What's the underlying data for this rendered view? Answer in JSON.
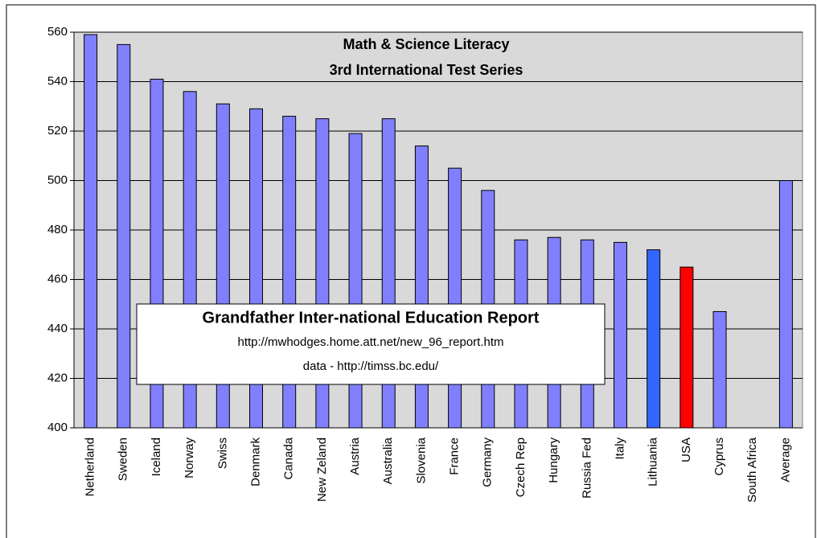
{
  "chart_data": {
    "type": "bar",
    "title": "Math & Science Literacy",
    "subtitle": "3rd International Test Series",
    "categories": [
      "Netherland",
      "Sweden",
      "Iceland",
      "Norway",
      "Swiss",
      "Denmark",
      "Canada",
      "New Zeland",
      "Austria",
      "Australia",
      "Slovenia",
      "France",
      "Germany",
      "Czech Rep",
      "Hungary",
      "Russia Fed",
      "Italy",
      "Lithuania",
      "USA",
      "Cyprus",
      "South Africa",
      "Average"
    ],
    "values": [
      559,
      555,
      541,
      536,
      531,
      529,
      526,
      525,
      519,
      525,
      514,
      505,
      496,
      476,
      477,
      476,
      475,
      472,
      465,
      447,
      null,
      500
    ],
    "colors": [
      "#8080ff",
      "#8080ff",
      "#8080ff",
      "#8080ff",
      "#8080ff",
      "#8080ff",
      "#8080ff",
      "#8080ff",
      "#8080ff",
      "#8080ff",
      "#8080ff",
      "#8080ff",
      "#8080ff",
      "#8080ff",
      "#8080ff",
      "#8080ff",
      "#8080ff",
      "#3366ff",
      "#ff0000",
      "#8080ff",
      "#8080ff",
      "#8080ff"
    ],
    "ylim": [
      400,
      560
    ],
    "yticks": [
      400,
      420,
      440,
      460,
      480,
      500,
      520,
      540,
      560
    ],
    "grid": true,
    "annotation": {
      "title": "Grandfather Inter-national Education Report",
      "lines": [
        "http://mwhodges.home.att.net/new_96_report.htm",
        "data - http://timss.bc.edu/"
      ]
    }
  }
}
